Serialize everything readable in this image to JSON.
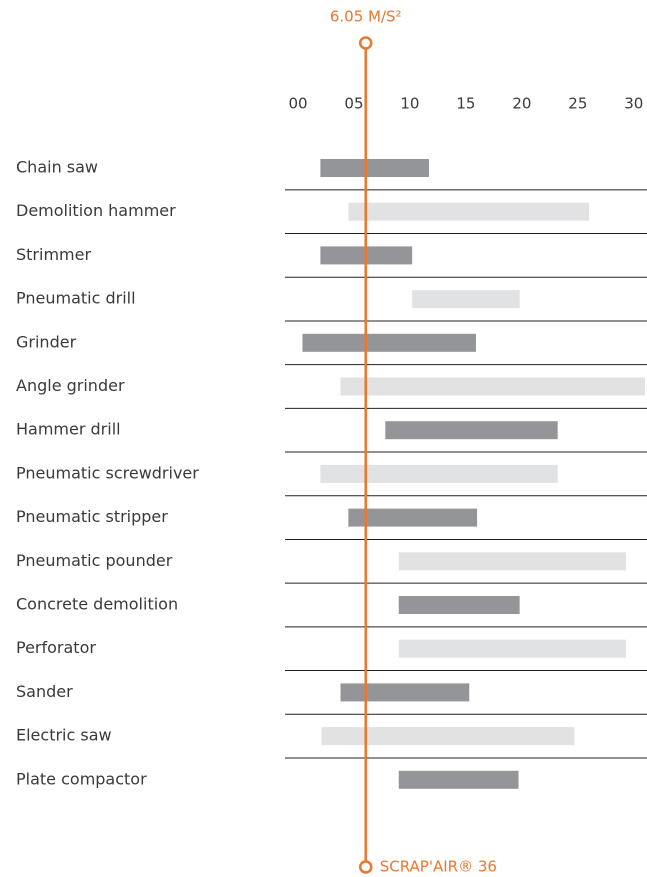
{
  "chart_data": {
    "type": "floating-bar",
    "categories": [
      "Chain saw",
      "Demolition hammer",
      "Strimmer",
      "Pneumatic drill",
      "Grinder",
      "Angle grinder",
      "Hammer drill",
      "Pneumatic screwdriver",
      "Pneumatic stripper",
      "Pneumatic pounder",
      "Concrete demolition",
      "Perforator",
      "Sander",
      "Electric saw",
      "Plate compactor"
    ],
    "starts": [
      2,
      4.5,
      2,
      10.2,
      0.4,
      3.8,
      7.8,
      2,
      4.5,
      9,
      9,
      9,
      3.8,
      2.1,
      9
    ],
    "ends": [
      11.7,
      26,
      10.2,
      19.8,
      15.9,
      31,
      23.2,
      23.2,
      16,
      29.3,
      19.8,
      29.3,
      15.3,
      24.7,
      19.7
    ],
    "colors": [
      "#939598",
      "#e1e2e3",
      "#939598",
      "#e1e2e3",
      "#939598",
      "#e1e2e3",
      "#939598",
      "#e1e2e3",
      "#939598",
      "#e1e2e3",
      "#939598",
      "#e1e2e3",
      "#939598",
      "#e1e2e3",
      "#939598"
    ],
    "xlim": [
      0,
      31
    ],
    "xticks": [
      {
        "value": 0,
        "label": "00"
      },
      {
        "value": 5,
        "label": "05"
      },
      10,
      15,
      20,
      25,
      30
    ],
    "reference": {
      "value": 6.05,
      "label": "6.05 M/S²",
      "color": "#e8782e"
    },
    "reference_footer": "SCRAP'AIR® 36"
  }
}
